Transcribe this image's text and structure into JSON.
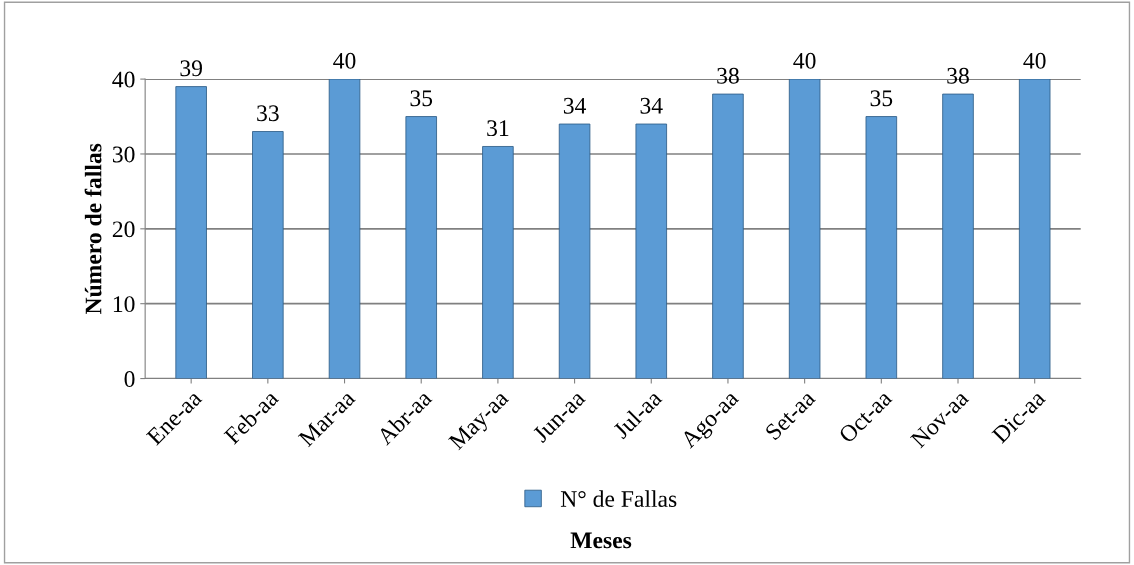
{
  "chart_data": {
    "type": "bar",
    "xlabel": "Meses",
    "ylabel": "Número de fallas",
    "categories": [
      "Ene-aa",
      "Feb-aa",
      "Mar-aa",
      "Abr-aa",
      "May-aa",
      "Jun-aa",
      "Jul-aa",
      "Ago-aa",
      "Set-aa",
      "Oct-aa",
      "Nov-aa",
      "Dic-aa"
    ],
    "series": [
      {
        "name": "N° de Fallas",
        "color": "#5b9bd5",
        "values": [
          39,
          33,
          40,
          35,
          31,
          34,
          34,
          38,
          40,
          35,
          38,
          40
        ]
      }
    ],
    "ylim": [
      0,
      40
    ],
    "yticks": [
      0,
      10,
      20,
      30,
      40
    ],
    "grid": "y",
    "legend": "bottom",
    "data_labels": true
  }
}
